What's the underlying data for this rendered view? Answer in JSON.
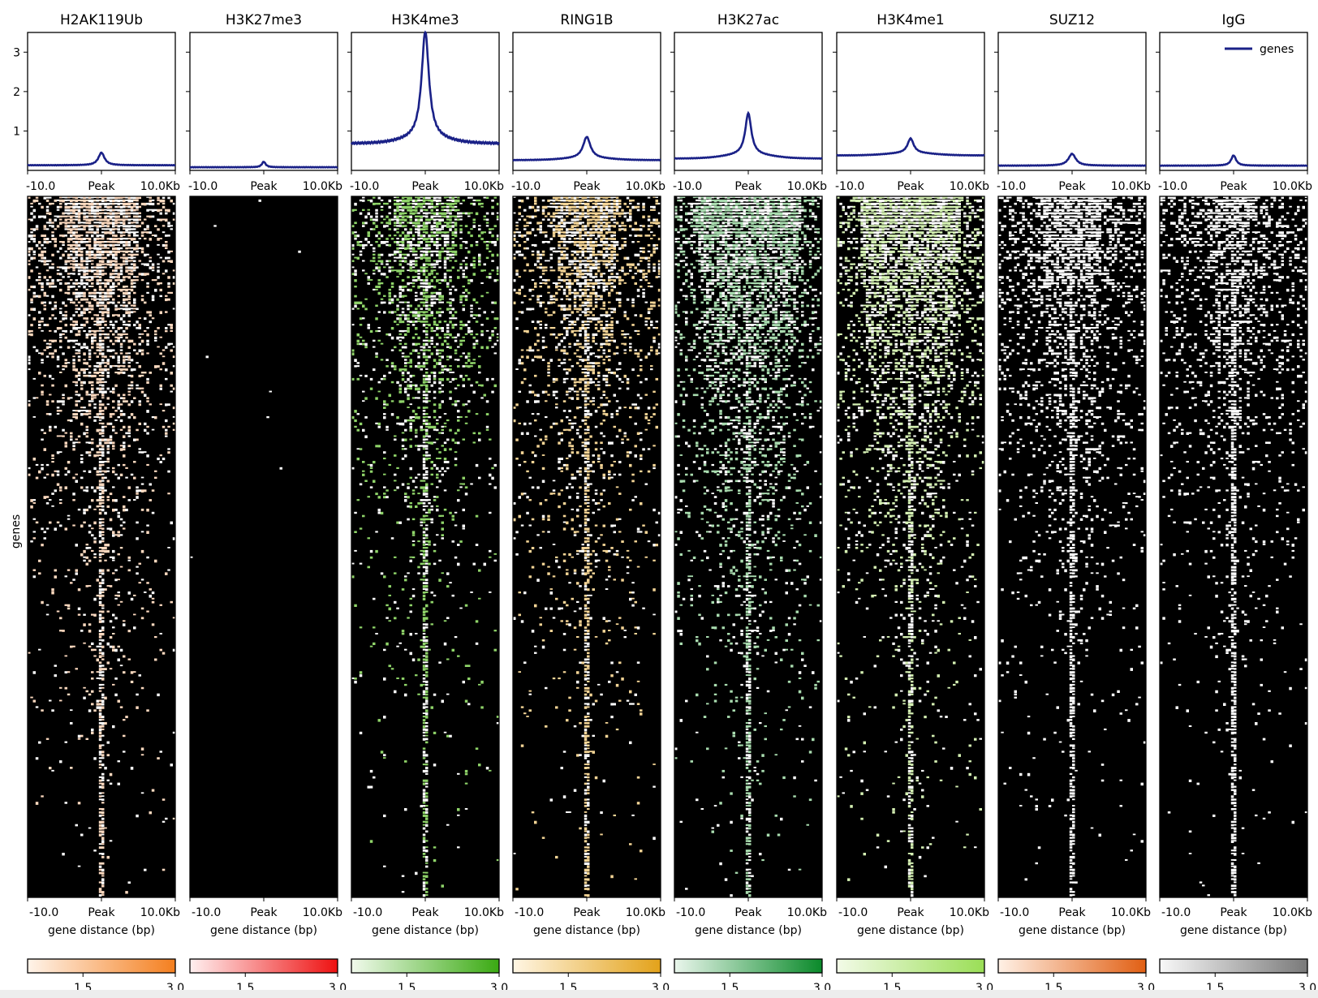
{
  "chart_data": {
    "type": "heatmap",
    "ylabel": "genes",
    "xlabel": "gene distance (bp)",
    "x_tick_labels": [
      "-10.0",
      "Peak",
      "10.0Kb"
    ],
    "x_range_kb": [
      -10,
      10
    ],
    "profile_ylim": [
      0,
      3.5
    ],
    "profile_yticks": [
      1,
      2,
      3
    ],
    "legend": {
      "label": "genes",
      "placement": "upper-right",
      "color": "#1a2187"
    },
    "line_color": "#1a2187",
    "colorbar_ticks": [
      1.5,
      3.0
    ],
    "colorbar_tick_labels": [
      "1.5",
      "3.0"
    ],
    "colorbar_range": [
      0.6,
      3.0
    ],
    "panels": [
      {
        "name": "H2AK119Ub",
        "baseline": 0.13,
        "peak": 0.45,
        "peak_width_kb": 0.5,
        "shoulder": 0.0,
        "cmap": [
          "#fff4ea",
          "#f47f1f"
        ],
        "heat_color": "#fcd9bf",
        "density": 0.55,
        "top_density": 0.9,
        "core_width": 0.06
      },
      {
        "name": "H3K27me3",
        "baseline": 0.08,
        "peak": 0.22,
        "peak_width_kb": 0.3,
        "shoulder": 0.0,
        "cmap": [
          "#fff0f0",
          "#ee1111"
        ],
        "heat_color": "#ffffff",
        "density": 0.0,
        "top_density": 0.005,
        "core_width": 0.0
      },
      {
        "name": "H3K4me3",
        "baseline": 0.68,
        "peak": 3.4,
        "peak_width_kb": 0.6,
        "shoulder": 0.12,
        "cmap": [
          "#f1faec",
          "#3aaa12"
        ],
        "heat_color": "#8fd469",
        "density": 0.35,
        "top_density": 0.8,
        "core_width": 0.1
      },
      {
        "name": "RING1B",
        "baseline": 0.26,
        "peak": 0.8,
        "peak_width_kb": 0.6,
        "shoulder": 0.05,
        "cmap": [
          "#fff6e4",
          "#e3a21a"
        ],
        "heat_color": "#f4d596",
        "density": 0.4,
        "top_density": 0.9,
        "core_width": 0.07
      },
      {
        "name": "H3K27ac",
        "baseline": 0.3,
        "peak": 1.35,
        "peak_width_kb": 0.5,
        "shoulder": 0.1,
        "cmap": [
          "#eaf6ec",
          "#0a8a2a"
        ],
        "heat_color": "#a9dcaf",
        "density": 0.7,
        "top_density": 0.95,
        "core_width": 0.12
      },
      {
        "name": "H3K4me1",
        "baseline": 0.38,
        "peak": 0.75,
        "peak_width_kb": 0.5,
        "shoulder": 0.06,
        "cmap": [
          "#f3fbe8",
          "#9ade56"
        ],
        "heat_color": "#d5f1b3",
        "density": 0.6,
        "top_density": 0.95,
        "core_width": 0.14
      },
      {
        "name": "SUZ12",
        "baseline": 0.12,
        "peak": 0.42,
        "peak_width_kb": 0.6,
        "shoulder": 0.0,
        "cmap": [
          "#fff1e6",
          "#e15f13"
        ],
        "heat_color": "#ffffff",
        "density": 0.45,
        "top_density": 0.85,
        "core_width": 0.05
      },
      {
        "name": "IgG",
        "baseline": 0.12,
        "peak": 0.38,
        "peak_width_kb": 0.4,
        "shoulder": 0.0,
        "cmap": [
          "#f8f8f8",
          "#7a7a7a"
        ],
        "heat_color": "#ffffff",
        "density": 0.3,
        "top_density": 0.75,
        "core_width": 0.04
      }
    ]
  }
}
